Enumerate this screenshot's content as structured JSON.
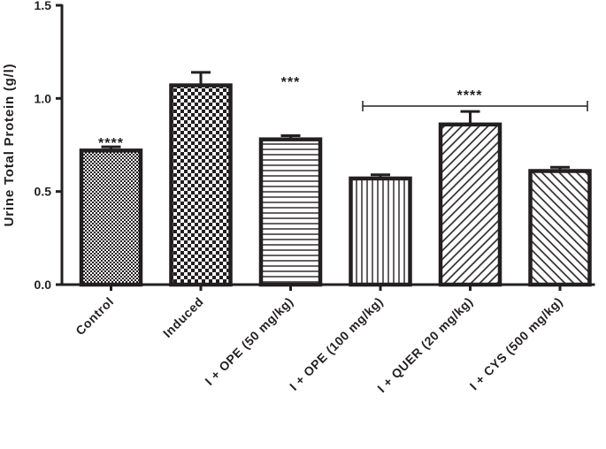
{
  "chart_data": {
    "type": "bar",
    "ylabel": "Urine Total Protein (g/l)",
    "xlabel": "",
    "ylim": [
      0,
      1.5
    ],
    "yticks": [
      "0.0",
      "0.5",
      "1.0",
      "1.5"
    ],
    "ytick_values": [
      0,
      0.5,
      1.0,
      1.5
    ],
    "categories": [
      "Control",
      "Induced",
      "I + OPE (50 mg/kg)",
      "I + OPE (100 mg/kg)",
      "I + QUER (20 mg/kg)",
      "I + CYS (500 mg/kg)"
    ],
    "values": [
      0.72,
      1.07,
      0.78,
      0.57,
      0.86,
      0.61
    ],
    "errors": [
      0.02,
      0.07,
      0.02,
      0.02,
      0.07,
      0.02
    ],
    "patterns": [
      "fine-checker",
      "checker",
      "horizontal-lines",
      "vertical-lines",
      "diagonal-up",
      "diagonal-down"
    ],
    "bar_color": "#231f20",
    "annotations": [
      {
        "text": "****",
        "target": "Control"
      },
      {
        "text": "***",
        "target": "I + OPE (50 mg/kg)"
      },
      {
        "text": "****",
        "target": "I + OPE (100 mg/kg) to I + CYS (500 mg/kg)"
      }
    ]
  }
}
